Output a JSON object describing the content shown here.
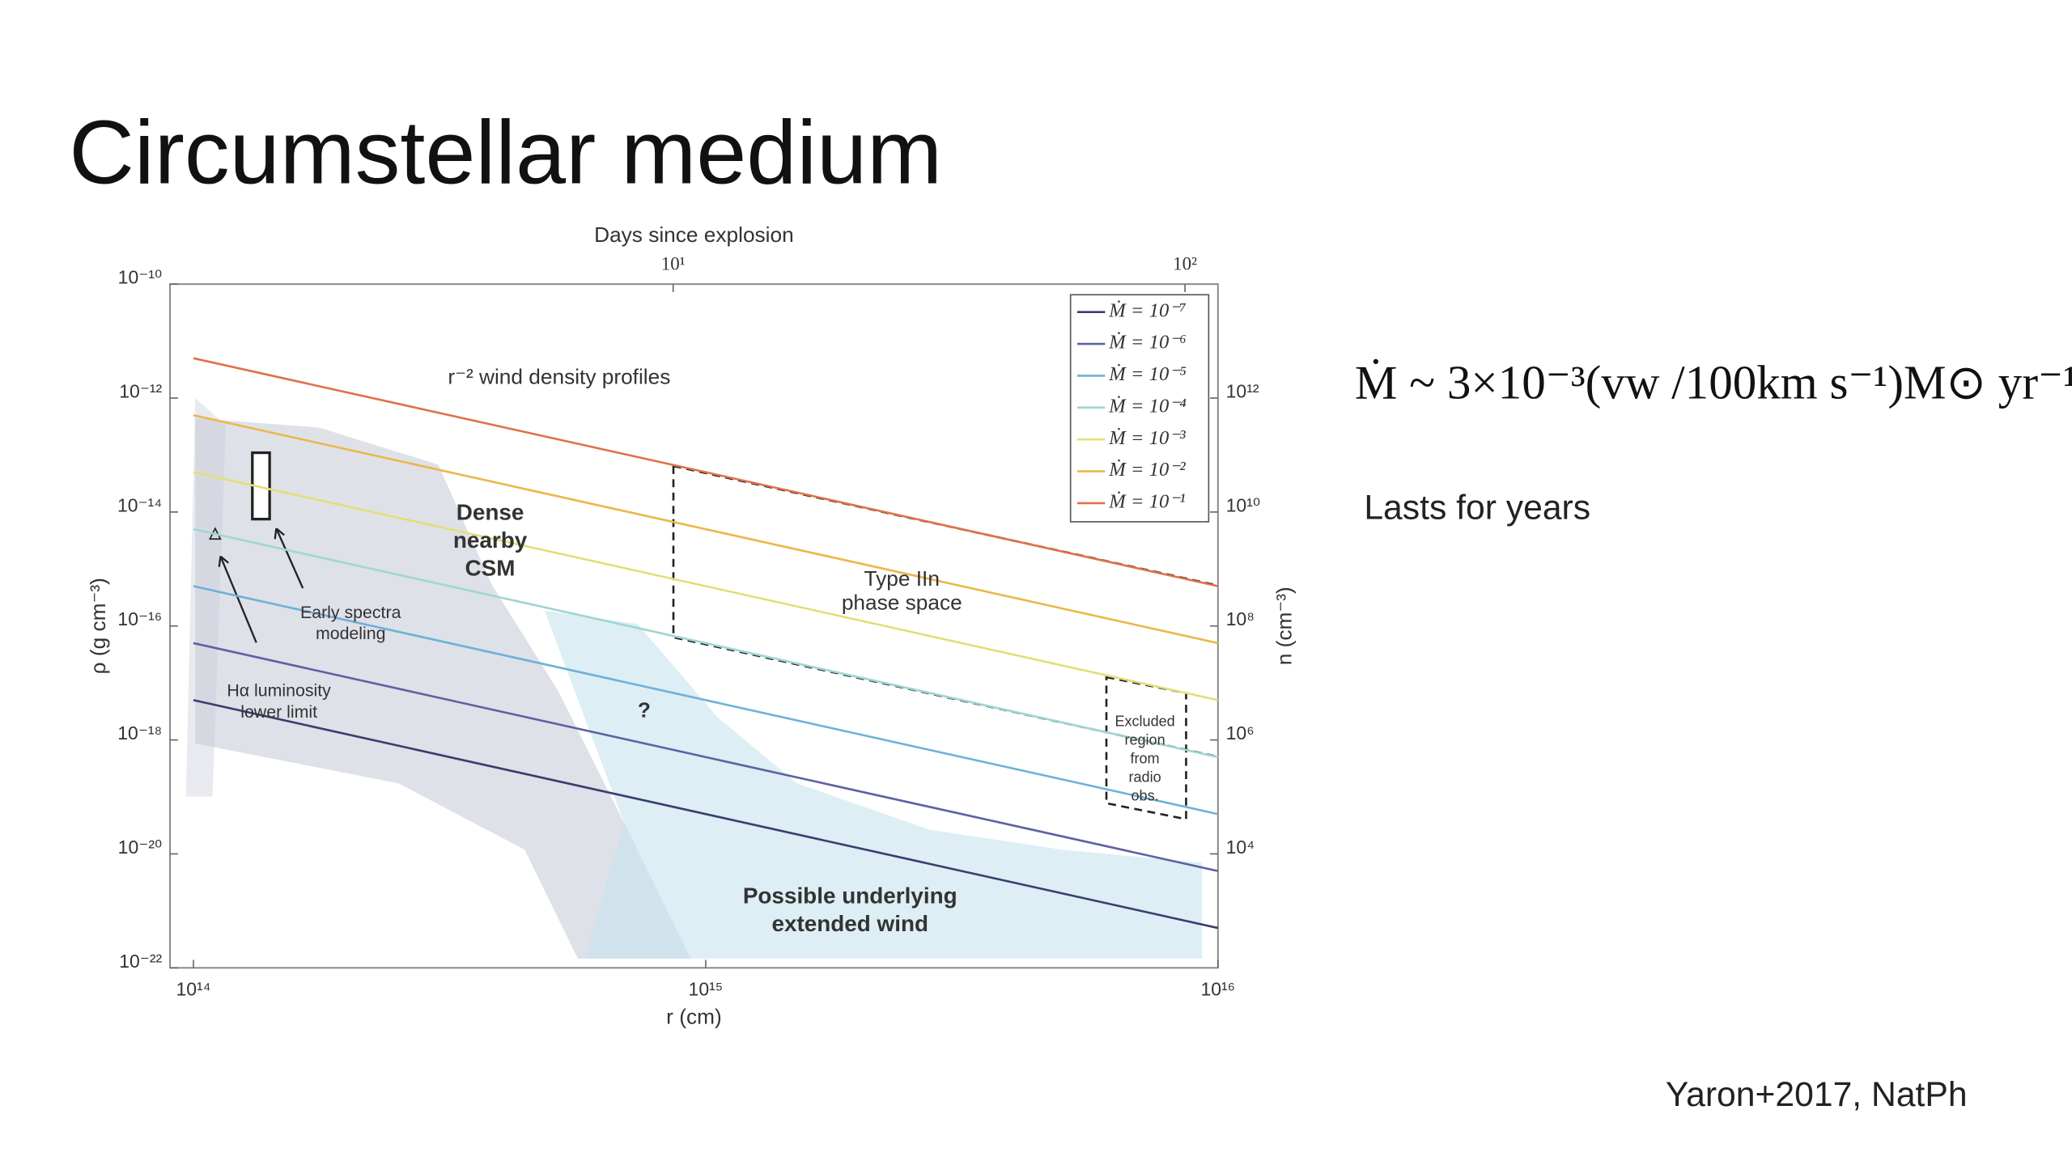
{
  "title": "Circumstellar medium",
  "formula": "Ṁ ~ 3×10⁻³(vw /100km s⁻¹)M⊙ yr⁻¹",
  "note": "Lasts for years",
  "citation": "Yaron+2017, NatPh",
  "chart_data": {
    "type": "line",
    "x_label": "r (cm)",
    "y_label": "ρ (g cm⁻³)",
    "y2_label": "n (cm⁻³)",
    "x2_label": "Days since explosion",
    "xscale": "log",
    "yscale": "log",
    "xlim": [
      90000000000000.0,
      1e+16
    ],
    "xticks": [
      {
        "value": 100000000000000.0,
        "label": "10¹⁴"
      },
      {
        "value": 1000000000000000.0,
        "label": "10¹⁵"
      },
      {
        "value": 1e+16,
        "label": "10¹⁶"
      }
    ],
    "ylim": [
      1e-22,
      1e-10
    ],
    "yticks": [
      {
        "value": 1e-22,
        "label": "10⁻²²"
      },
      {
        "value": 1e-20,
        "label": "10⁻²⁰"
      },
      {
        "value": 1e-18,
        "label": "10⁻¹⁸"
      },
      {
        "value": 1e-16,
        "label": "10⁻¹⁶"
      },
      {
        "value": 1e-14,
        "label": "10⁻¹⁴"
      },
      {
        "value": 1e-12,
        "label": "10⁻¹²"
      },
      {
        "value": 1e-10,
        "label": "10⁻¹⁰"
      }
    ],
    "y2lim": [
      100.0,
      100000000000000.0
    ],
    "y2ticks": [
      {
        "value": 10000.0,
        "label": "10⁴"
      },
      {
        "value": 1000000.0,
        "label": "10⁶"
      },
      {
        "value": 100000000.0,
        "label": "10⁸"
      },
      {
        "value": 10000000000.0,
        "label": "10¹⁰"
      },
      {
        "value": 1000000000000.0,
        "label": "10¹²"
      }
    ],
    "x2lim": [
      1.04,
      116
    ],
    "x2ticks": [
      {
        "value": 10,
        "label": "10¹"
      },
      {
        "value": 100,
        "label": "10²"
      }
    ],
    "legend": "upper right",
    "x": [
      100000000000000.0,
      1e+16
    ],
    "series": [
      {
        "name": "Ṁ = 10⁻⁷",
        "color": "#3d3d6e",
        "values": [
          5e-18,
          5e-22
        ]
      },
      {
        "name": "Ṁ = 10⁻⁶",
        "color": "#5e62a3",
        "values": [
          5e-17,
          5e-21
        ]
      },
      {
        "name": "Ṁ = 10⁻⁵",
        "color": "#6fb1d8",
        "values": [
          5e-16,
          5e-20
        ]
      },
      {
        "name": "Ṁ = 10⁻⁴",
        "color": "#9fd6d2",
        "values": [
          5e-15,
          5e-19
        ]
      },
      {
        "name": "Ṁ = 10⁻³",
        "color": "#e2df78",
        "values": [
          5e-14,
          5e-18
        ]
      },
      {
        "name": "Ṁ = 10⁻²",
        "color": "#e9b84c",
        "values": [
          5e-13,
          5e-17
        ]
      },
      {
        "name": "Ṁ = 10⁻¹",
        "color": "#e0714c",
        "values": [
          5e-12,
          5e-16
        ]
      }
    ],
    "annotations": [
      [
        "r⁻² wind density profiles"
      ],
      [
        "Dense",
        "nearby",
        "CSM"
      ],
      [
        "Type IIn",
        "phase space"
      ],
      [
        "Early spectra",
        "modeling"
      ],
      [
        "Hα luminosity",
        "lower limit"
      ],
      [
        "?"
      ],
      [
        "Excluded",
        "region",
        "from",
        "radio",
        "obs."
      ],
      [
        "Possible underlying",
        "extended wind"
      ]
    ]
  }
}
